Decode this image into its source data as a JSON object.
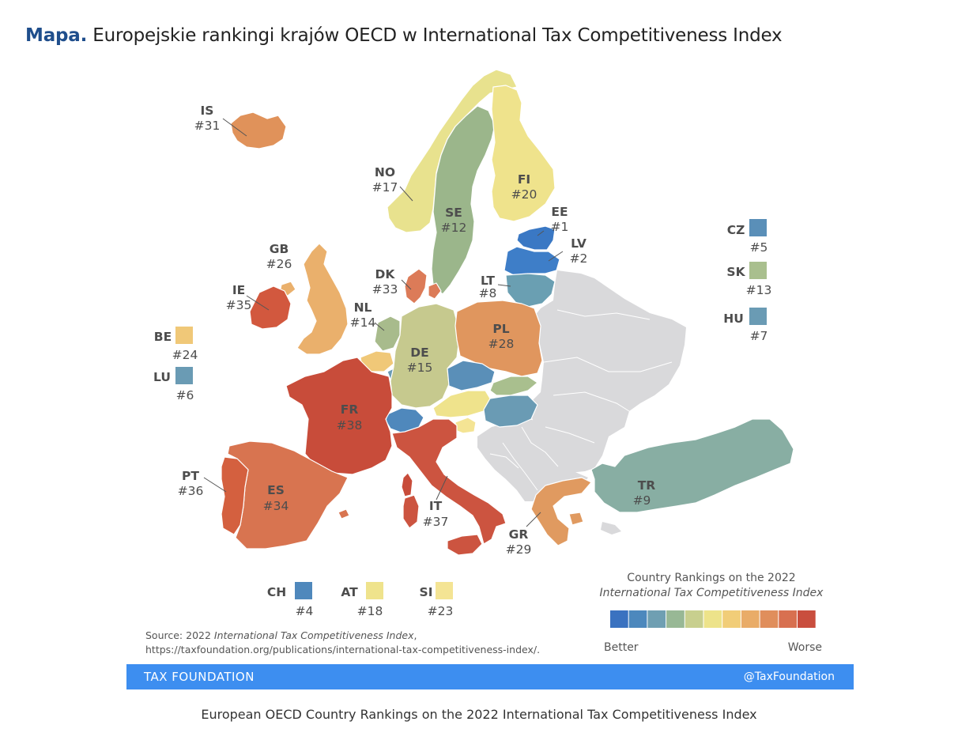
{
  "title": {
    "lead": "Mapa.",
    "text": "Europejskie rankingi krajów OECD w International Tax Competitiveness Index"
  },
  "countries": [
    {
      "code": "IS",
      "rank": "#31",
      "color": "#e0925a"
    },
    {
      "code": "NO",
      "rank": "#17",
      "color": "#e8e28e"
    },
    {
      "code": "SE",
      "rank": "#12",
      "color": "#9bb68b"
    },
    {
      "code": "FI",
      "rank": "#20",
      "color": "#efe38c"
    },
    {
      "code": "EE",
      "rank": "#1",
      "color": "#3a78c4"
    },
    {
      "code": "LV",
      "rank": "#2",
      "color": "#3e7ec8"
    },
    {
      "code": "LT",
      "rank": "#8",
      "color": "#6a9fb2"
    },
    {
      "code": "GB",
      "rank": "#26",
      "color": "#eab06c"
    },
    {
      "code": "IE",
      "rank": "#35",
      "color": "#d2583e"
    },
    {
      "code": "DK",
      "rank": "#33",
      "color": "#dc7b58"
    },
    {
      "code": "NL",
      "rank": "#14",
      "color": "#a8bb8c"
    },
    {
      "code": "DE",
      "rank": "#15",
      "color": "#c6c98e"
    },
    {
      "code": "PL",
      "rank": "#28",
      "color": "#e0965e"
    },
    {
      "code": "FR",
      "rank": "#38",
      "color": "#c84c3a"
    },
    {
      "code": "PT",
      "rank": "#36",
      "color": "#d4603f"
    },
    {
      "code": "ES",
      "rank": "#34",
      "color": "#d87450"
    },
    {
      "code": "IT",
      "rank": "#37",
      "color": "#cc5440"
    },
    {
      "code": "GR",
      "rank": "#29",
      "color": "#e09a60"
    },
    {
      "code": "TR",
      "rank": "#9",
      "color": "#88aea3"
    },
    {
      "code": "CZ",
      "rank": "#5",
      "color": "#5a8fb8"
    },
    {
      "code": "SK",
      "rank": "#13",
      "color": "#a9bf8e"
    },
    {
      "code": "HU",
      "rank": "#7",
      "color": "#6a9bb4"
    },
    {
      "code": "BE",
      "rank": "#24",
      "color": "#f0c878"
    },
    {
      "code": "LU",
      "rank": "#6",
      "color": "#6a9bb4"
    },
    {
      "code": "CH",
      "rank": "#4",
      "color": "#4f88bc"
    },
    {
      "code": "AT",
      "rank": "#18",
      "color": "#efe38c"
    },
    {
      "code": "SI",
      "rank": "#23",
      "color": "#f4e494"
    }
  ],
  "non_oecd_color": "#d9d9db",
  "legend": {
    "title": "Country Rankings on the 2022",
    "subtitle": "International Tax Competitiveness Index",
    "better": "Better",
    "worse": "Worse",
    "colors": [
      "#3a72c0",
      "#4c88bd",
      "#6f9fb2",
      "#98b895",
      "#c8cf8e",
      "#ede38a",
      "#f1cd78",
      "#e9ac68",
      "#e08e5c",
      "#d87050",
      "#c94e3e"
    ]
  },
  "source": {
    "prefix": "Source: 2022",
    "italic": "International Tax Competitiveness Index",
    "suffix": ",",
    "url": "https://taxfoundation.org/publications/international-tax-competitiveness-index/."
  },
  "footer": {
    "left": "TAX FOUNDATION",
    "right": "@TaxFoundation"
  },
  "caption": "European OECD Country Rankings on the 2022 International Tax Competitiveness Index"
}
